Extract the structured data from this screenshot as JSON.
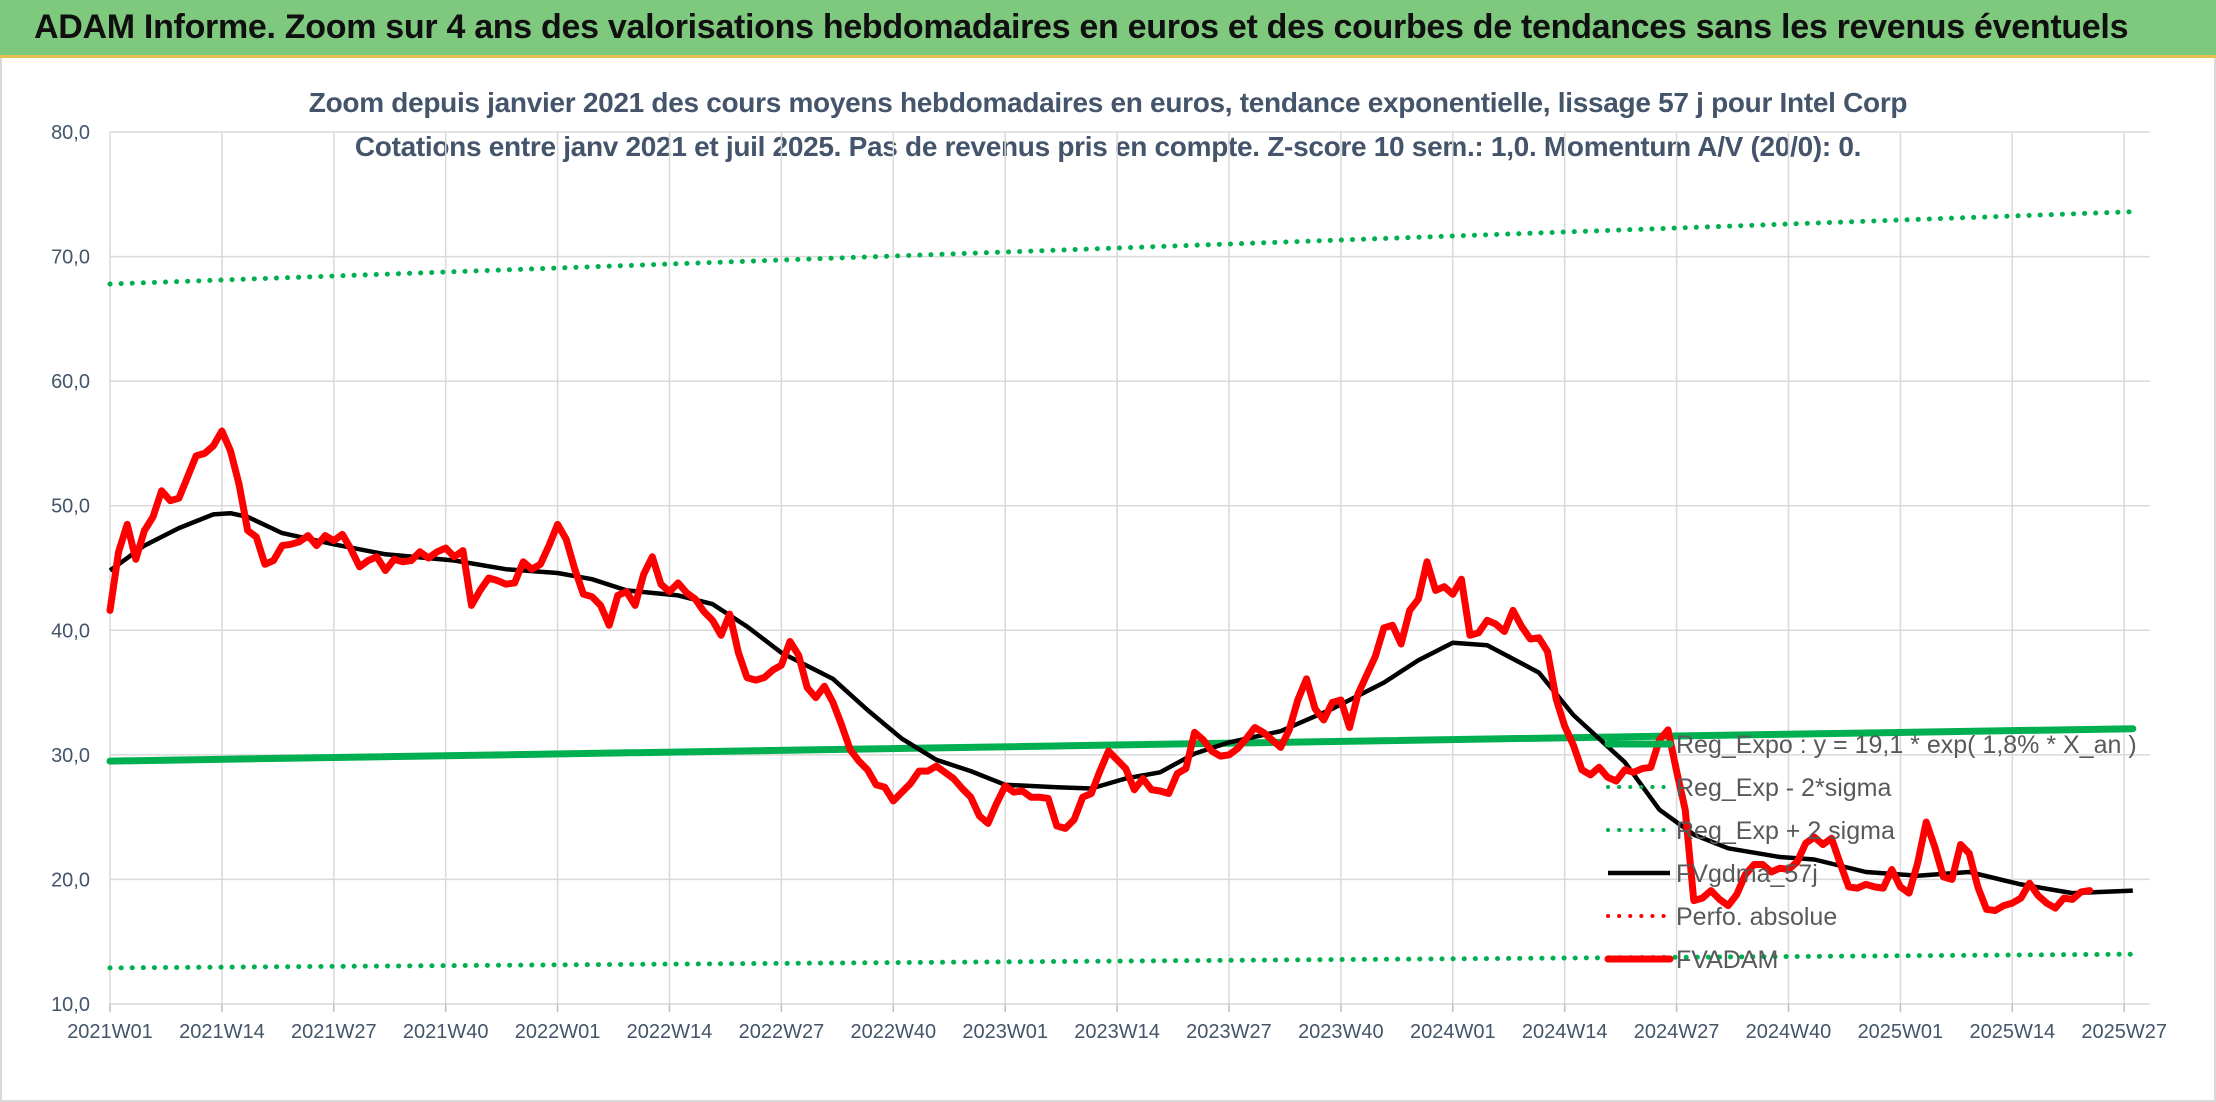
{
  "banner": {
    "title": "ADAM Informe. Zoom sur 4 ans des valorisations hebdomadaires en euros et des courbes de tendances sans les revenus éventuels"
  },
  "colors": {
    "banner_bg": "#7fc97f",
    "green_series": "#00b050",
    "price_series": "#ff0000",
    "smoothing_series": "#000000",
    "title_text": "#44546a"
  },
  "chart_data": {
    "type": "line",
    "title": "Zoom depuis janvier 2021 des cours moyens hebdomadaires en euros, tendance exponentielle, lissage 57 j pour Intel Corp",
    "subtitle": "Cotations entre janv 2021 et juil 2025. Pas de revenus pris en compte. Z-score 10 sem.: 1,0. Momentum A/V (20/0): 0.",
    "xlabel": "",
    "ylabel": "",
    "ylim": [
      10,
      80
    ],
    "yticks": [
      "10,0",
      "20,0",
      "30,0",
      "40,0",
      "50,0",
      "60,0",
      "70,0",
      "80,0"
    ],
    "x_range": [
      0,
      237
    ],
    "x_ticks": [
      {
        "label": "2021W01",
        "x": 0
      },
      {
        "label": "2021W14",
        "x": 13
      },
      {
        "label": "2021W27",
        "x": 26
      },
      {
        "label": "2021W40",
        "x": 39
      },
      {
        "label": "2022W01",
        "x": 52
      },
      {
        "label": "2022W14",
        "x": 65
      },
      {
        "label": "2022W27",
        "x": 78
      },
      {
        "label": "2022W40",
        "x": 91
      },
      {
        "label": "2023W01",
        "x": 104
      },
      {
        "label": "2023W14",
        "x": 117
      },
      {
        "label": "2023W27",
        "x": 130
      },
      {
        "label": "2023W40",
        "x": 143
      },
      {
        "label": "2024W01",
        "x": 156
      },
      {
        "label": "2024W14",
        "x": 169
      },
      {
        "label": "2024W27",
        "x": 182
      },
      {
        "label": "2024W40",
        "x": 195
      },
      {
        "label": "2025W01",
        "x": 208
      },
      {
        "label": "2025W14",
        "x": 221
      },
      {
        "label": "2025W27",
        "x": 234
      }
    ],
    "grid": true,
    "legend_position": "bottom-right",
    "series": [
      {
        "name": "Reg_Expo : y = 19,1 * exp( 1,8% * X_an )",
        "style": "solid-thick",
        "color": "#00b050",
        "points": [
          [
            0,
            29.5
          ],
          [
            235,
            32.1
          ]
        ]
      },
      {
        "name": "Reg_Exp - 2*sigma",
        "style": "dotted",
        "color": "#00b050",
        "points": [
          [
            0,
            12.9
          ],
          [
            235,
            14.0
          ]
        ]
      },
      {
        "name": "Reg_Exp + 2 sigma",
        "style": "dotted",
        "color": "#00b050",
        "points": [
          [
            0,
            67.8
          ],
          [
            235,
            73.6
          ]
        ]
      },
      {
        "name": "FVgdma_57j",
        "style": "solid",
        "color": "#000000",
        "points": [
          [
            0,
            44.8
          ],
          [
            4,
            46.8
          ],
          [
            8,
            48.2
          ],
          [
            12,
            49.3
          ],
          [
            14,
            49.4
          ],
          [
            16,
            49.1
          ],
          [
            20,
            47.8
          ],
          [
            26,
            46.9
          ],
          [
            32,
            46.1
          ],
          [
            40,
            45.6
          ],
          [
            46,
            44.9
          ],
          [
            52,
            44.6
          ],
          [
            56,
            44.1
          ],
          [
            60,
            43.2
          ],
          [
            66,
            42.8
          ],
          [
            70,
            42.1
          ],
          [
            74,
            40.3
          ],
          [
            78,
            38.2
          ],
          [
            84,
            36.1
          ],
          [
            88,
            33.6
          ],
          [
            92,
            31.3
          ],
          [
            96,
            29.6
          ],
          [
            100,
            28.7
          ],
          [
            104,
            27.6
          ],
          [
            110,
            27.4
          ],
          [
            114,
            27.3
          ],
          [
            118,
            28.1
          ],
          [
            122,
            28.6
          ],
          [
            126,
            30.1
          ],
          [
            130,
            31.0
          ],
          [
            136,
            31.9
          ],
          [
            142,
            33.7
          ],
          [
            148,
            35.8
          ],
          [
            152,
            37.6
          ],
          [
            156,
            39.0
          ],
          [
            160,
            38.8
          ],
          [
            166,
            36.6
          ],
          [
            170,
            33.2
          ],
          [
            176,
            29.4
          ],
          [
            180,
            25.6
          ],
          [
            184,
            23.6
          ],
          [
            188,
            22.5
          ],
          [
            194,
            21.8
          ],
          [
            198,
            21.6
          ],
          [
            204,
            20.6
          ],
          [
            210,
            20.3
          ],
          [
            216,
            20.6
          ],
          [
            222,
            19.6
          ],
          [
            228,
            18.9
          ],
          [
            235,
            19.1
          ]
        ]
      },
      {
        "name": "Perfo. absolue",
        "style": "dotted",
        "color": "#ff0000",
        "points": []
      },
      {
        "name": "FVADAM",
        "style": "solid-thick",
        "color": "#ff0000",
        "points": [
          [
            0,
            41.6
          ],
          [
            1,
            46.3
          ],
          [
            2,
            48.5
          ],
          [
            3,
            45.7
          ],
          [
            4,
            48.0
          ],
          [
            5,
            49.1
          ],
          [
            6,
            51.2
          ],
          [
            7,
            50.4
          ],
          [
            8,
            50.6
          ],
          [
            9,
            52.3
          ],
          [
            10,
            54.0
          ],
          [
            11,
            54.2
          ],
          [
            12,
            54.8
          ],
          [
            13,
            56.0
          ],
          [
            14,
            54.4
          ],
          [
            15,
            51.7
          ],
          [
            16,
            48.0
          ],
          [
            17,
            47.5
          ],
          [
            18,
            45.3
          ],
          [
            19,
            45.6
          ],
          [
            20,
            46.8
          ],
          [
            21,
            46.9
          ],
          [
            22,
            47.1
          ],
          [
            23,
            47.6
          ],
          [
            24,
            46.8
          ],
          [
            25,
            47.6
          ],
          [
            26,
            47.2
          ],
          [
            27,
            47.7
          ],
          [
            28,
            46.5
          ],
          [
            29,
            45.1
          ],
          [
            30,
            45.6
          ],
          [
            31,
            45.9
          ],
          [
            32,
            44.8
          ],
          [
            33,
            45.7
          ],
          [
            34,
            45.5
          ],
          [
            35,
            45.6
          ],
          [
            36,
            46.3
          ],
          [
            37,
            45.8
          ],
          [
            38,
            46.3
          ],
          [
            39,
            46.6
          ],
          [
            40,
            45.9
          ],
          [
            41,
            46.4
          ],
          [
            42,
            42.0
          ],
          [
            43,
            43.2
          ],
          [
            44,
            44.2
          ],
          [
            45,
            44.0
          ],
          [
            46,
            43.7
          ],
          [
            47,
            43.8
          ],
          [
            48,
            45.5
          ],
          [
            49,
            44.9
          ],
          [
            50,
            45.3
          ],
          [
            51,
            46.8
          ],
          [
            52,
            48.5
          ],
          [
            53,
            47.3
          ],
          [
            54,
            44.9
          ],
          [
            55,
            42.9
          ],
          [
            56,
            42.7
          ],
          [
            57,
            42.0
          ],
          [
            58,
            40.4
          ],
          [
            59,
            42.8
          ],
          [
            60,
            43.1
          ],
          [
            61,
            42.0
          ],
          [
            62,
            44.5
          ],
          [
            63,
            45.9
          ],
          [
            64,
            43.7
          ],
          [
            65,
            43.1
          ],
          [
            66,
            43.8
          ],
          [
            67,
            43.0
          ],
          [
            68,
            42.5
          ],
          [
            69,
            41.5
          ],
          [
            70,
            40.8
          ],
          [
            71,
            39.6
          ],
          [
            72,
            41.3
          ],
          [
            73,
            38.2
          ],
          [
            74,
            36.2
          ],
          [
            75,
            36.0
          ],
          [
            76,
            36.2
          ],
          [
            77,
            36.8
          ],
          [
            78,
            37.2
          ],
          [
            79,
            39.1
          ],
          [
            80,
            38.0
          ],
          [
            81,
            35.4
          ],
          [
            82,
            34.6
          ],
          [
            83,
            35.5
          ],
          [
            84,
            34.2
          ],
          [
            85,
            32.4
          ],
          [
            86,
            30.4
          ],
          [
            87,
            29.5
          ],
          [
            88,
            28.8
          ],
          [
            89,
            27.6
          ],
          [
            90,
            27.4
          ],
          [
            91,
            26.3
          ],
          [
            92,
            27.0
          ],
          [
            93,
            27.7
          ],
          [
            94,
            28.7
          ],
          [
            95,
            28.7
          ],
          [
            96,
            29.1
          ],
          [
            97,
            28.6
          ],
          [
            98,
            28.1
          ],
          [
            99,
            27.3
          ],
          [
            100,
            26.6
          ],
          [
            101,
            25.1
          ],
          [
            102,
            24.5
          ],
          [
            103,
            26.1
          ],
          [
            104,
            27.5
          ],
          [
            105,
            27.0
          ],
          [
            106,
            27.1
          ],
          [
            107,
            26.6
          ],
          [
            108,
            26.6
          ],
          [
            109,
            26.5
          ],
          [
            110,
            24.3
          ],
          [
            111,
            24.1
          ],
          [
            112,
            24.8
          ],
          [
            113,
            26.6
          ],
          [
            114,
            26.9
          ],
          [
            115,
            28.7
          ],
          [
            116,
            30.3
          ],
          [
            117,
            29.6
          ],
          [
            118,
            28.9
          ],
          [
            119,
            27.2
          ],
          [
            120,
            28.1
          ],
          [
            121,
            27.2
          ],
          [
            122,
            27.1
          ],
          [
            123,
            26.9
          ],
          [
            124,
            28.5
          ],
          [
            125,
            28.9
          ],
          [
            126,
            31.8
          ],
          [
            127,
            31.2
          ],
          [
            128,
            30.3
          ],
          [
            129,
            29.9
          ],
          [
            130,
            30.0
          ],
          [
            131,
            30.5
          ],
          [
            132,
            31.3
          ],
          [
            133,
            32.2
          ],
          [
            134,
            31.8
          ],
          [
            135,
            31.2
          ],
          [
            136,
            30.6
          ],
          [
            137,
            32.0
          ],
          [
            138,
            34.4
          ],
          [
            139,
            36.1
          ],
          [
            140,
            33.7
          ],
          [
            141,
            32.8
          ],
          [
            142,
            34.2
          ],
          [
            143,
            34.4
          ],
          [
            144,
            32.2
          ],
          [
            145,
            34.9
          ],
          [
            146,
            36.4
          ],
          [
            147,
            37.9
          ],
          [
            148,
            40.2
          ],
          [
            149,
            40.4
          ],
          [
            150,
            38.9
          ],
          [
            151,
            41.6
          ],
          [
            152,
            42.5
          ],
          [
            153,
            45.5
          ],
          [
            154,
            43.2
          ],
          [
            155,
            43.5
          ],
          [
            156,
            42.9
          ],
          [
            157,
            44.1
          ],
          [
            158,
            39.6
          ],
          [
            159,
            39.8
          ],
          [
            160,
            40.8
          ],
          [
            161,
            40.5
          ],
          [
            162,
            39.9
          ],
          [
            163,
            41.6
          ],
          [
            164,
            40.3
          ],
          [
            165,
            39.3
          ],
          [
            166,
            39.4
          ],
          [
            167,
            38.3
          ],
          [
            168,
            34.5
          ],
          [
            169,
            32.3
          ],
          [
            170,
            30.8
          ],
          [
            171,
            28.8
          ],
          [
            172,
            28.4
          ],
          [
            173,
            29.0
          ],
          [
            174,
            28.2
          ],
          [
            175,
            27.9
          ],
          [
            176,
            28.8
          ],
          [
            177,
            28.6
          ],
          [
            178,
            28.9
          ],
          [
            179,
            29.0
          ],
          [
            180,
            31.2
          ],
          [
            181,
            32.0
          ],
          [
            182,
            28.7
          ],
          [
            183,
            25.6
          ],
          [
            184,
            18.3
          ],
          [
            185,
            18.5
          ],
          [
            186,
            19.1
          ],
          [
            187,
            18.4
          ],
          [
            188,
            17.9
          ],
          [
            189,
            18.8
          ],
          [
            190,
            20.4
          ],
          [
            191,
            21.2
          ],
          [
            192,
            21.2
          ],
          [
            193,
            20.6
          ],
          [
            194,
            20.9
          ],
          [
            195,
            20.8
          ],
          [
            196,
            21.4
          ],
          [
            197,
            22.9
          ],
          [
            198,
            23.4
          ],
          [
            199,
            22.8
          ],
          [
            200,
            23.3
          ],
          [
            201,
            21.3
          ],
          [
            202,
            19.4
          ],
          [
            203,
            19.3
          ],
          [
            204,
            19.6
          ],
          [
            205,
            19.4
          ],
          [
            206,
            19.3
          ],
          [
            207,
            20.8
          ],
          [
            208,
            19.4
          ],
          [
            209,
            18.9
          ],
          [
            210,
            21.3
          ],
          [
            211,
            24.6
          ],
          [
            212,
            22.6
          ],
          [
            213,
            20.2
          ],
          [
            214,
            20.0
          ],
          [
            215,
            22.8
          ],
          [
            216,
            22.1
          ],
          [
            217,
            19.4
          ],
          [
            218,
            17.6
          ],
          [
            219,
            17.5
          ],
          [
            220,
            17.9
          ],
          [
            221,
            18.1
          ],
          [
            222,
            18.5
          ],
          [
            223,
            19.7
          ],
          [
            224,
            18.7
          ],
          [
            225,
            18.1
          ],
          [
            226,
            17.7
          ],
          [
            227,
            18.5
          ],
          [
            228,
            18.4
          ],
          [
            229,
            19.0
          ],
          [
            230,
            19.1
          ]
        ]
      }
    ]
  }
}
